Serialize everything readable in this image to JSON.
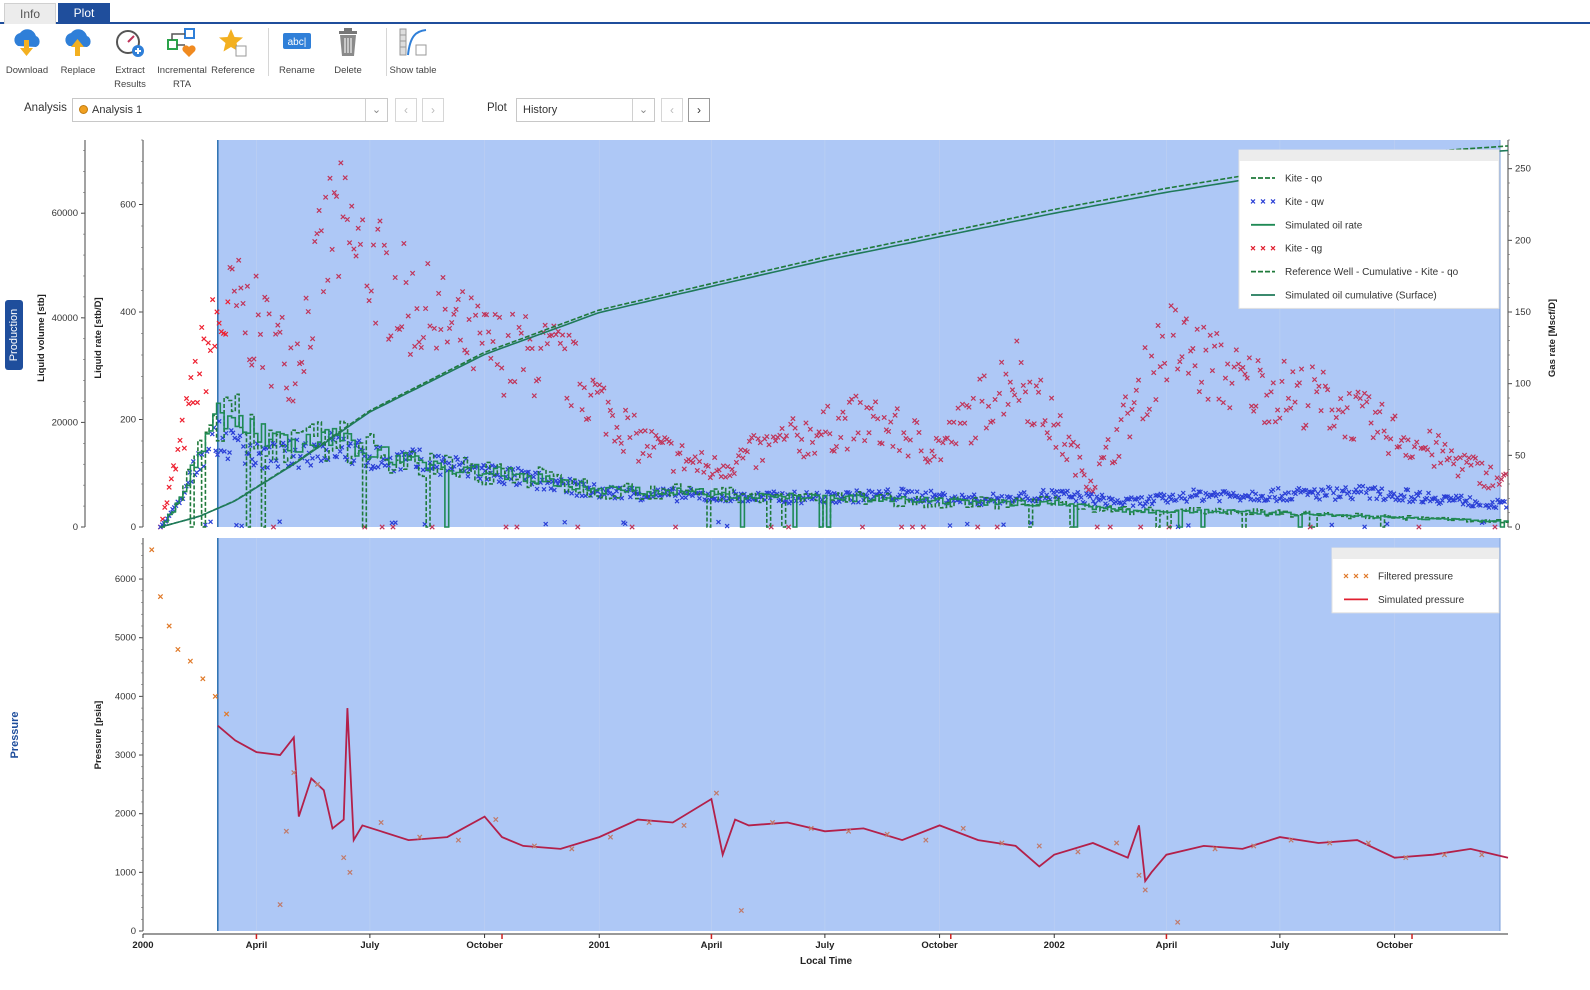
{
  "tabs": [
    {
      "label": "Info",
      "active": false
    },
    {
      "label": "Plot",
      "active": true
    }
  ],
  "toolbar": {
    "download": "Download",
    "replace": "Replace",
    "extract_1": "Extract",
    "extract_2": "Results",
    "incremental_1": "Incremental",
    "incremental_2": "RTA",
    "reference": "Reference",
    "rename": "Rename",
    "delete": "Delete",
    "show_table": "Show table",
    "rename_icon_text": "abc|"
  },
  "selectors": {
    "analysis_label": "Analysis",
    "analysis_value": "Analysis 1",
    "plot_label": "Plot",
    "plot_value": "History"
  },
  "side_labels": {
    "production": "Production",
    "pressure": "Pressure"
  },
  "colors": {
    "plot_bg": "#aec8f6",
    "kite_qo": "#1f7a3a",
    "kite_qw": "#2a3fd6",
    "kite_qg": "#c0355a",
    "sim_pressure": "#b3204a",
    "filtered_pressure": "#e07a2a"
  },
  "chart_data": [
    {
      "type": "line",
      "name": "production",
      "ylabel": "Liquid rate [stb/D]",
      "ylabel_left": "Liquid volume [stb]",
      "ylabel_right": "Gas rate [Mscf/D]",
      "y_ticks": [
        0,
        200,
        400,
        600
      ],
      "y_ticks_left": [
        0,
        20000,
        40000,
        60000
      ],
      "y_ticks_right": [
        0,
        50,
        100,
        150,
        200,
        250
      ],
      "ylim": [
        0,
        720
      ],
      "ylim_left": [
        0,
        74000
      ],
      "ylim_right": [
        0,
        270
      ],
      "legend": [
        {
          "label": "Kite - qo",
          "style": "dash",
          "color": "#1f7a3a"
        },
        {
          "label": "Kite - qw",
          "style": "cross",
          "color": "#2a3fd6"
        },
        {
          "label": "Simulated oil rate",
          "style": "solid",
          "color": "#1f8a55"
        },
        {
          "label": "Kite - qg",
          "style": "cross",
          "color": "#e02030"
        },
        {
          "label": "Reference Well - Cumulative - Kite - qo",
          "style": "dash",
          "color": "#1f7a3a"
        },
        {
          "label": "Simulated oil cumulative (Surface)",
          "style": "solid",
          "color": "#1f7a5a"
        }
      ],
      "series": [
        {
          "name": "Simulated oil cumulative (Surface)",
          "axis": "left",
          "x": [
            "2000-01-15",
            "2000-02-15",
            "2000-03-15",
            "2000-05-01",
            "2000-07-01",
            "2000-10-01",
            "2001-01-01",
            "2001-04-01",
            "2001-07-01",
            "2001-10-01",
            "2002-01-01",
            "2002-04-01",
            "2002-07-01",
            "2002-10-01",
            "2002-12-31"
          ],
          "values": [
            0,
            2000,
            5000,
            12000,
            22000,
            33000,
            41000,
            46000,
            51000,
            55500,
            60000,
            64000,
            67500,
            70500,
            72000
          ]
        },
        {
          "name": "Kite - qo",
          "axis": "rate",
          "x": [
            "2000-01-15",
            "2000-02-01",
            "2000-02-15",
            "2000-03-01",
            "2000-03-15",
            "2000-04-01",
            "2000-05-01",
            "2000-06-01",
            "2000-07-01",
            "2000-09-01",
            "2000-11-01",
            "2001-01-01",
            "2001-03-01",
            "2001-05-01",
            "2001-07-01",
            "2001-09-01",
            "2001-11-01",
            "2002-01-01",
            "2002-03-01",
            "2002-05-01",
            "2002-07-01",
            "2002-09-01",
            "2002-11-01",
            "2002-12-31"
          ],
          "values": [
            0,
            60,
            150,
            210,
            200,
            175,
            150,
            165,
            140,
            110,
            95,
            70,
            65,
            60,
            55,
            50,
            45,
            45,
            30,
            30,
            25,
            20,
            15,
            10
          ]
        },
        {
          "name": "Kite - qw",
          "axis": "rate",
          "x": [
            "2000-01-15",
            "2000-02-01",
            "2000-02-15",
            "2000-03-01",
            "2000-03-15",
            "2000-04-01",
            "2000-05-01",
            "2000-06-01",
            "2000-07-01",
            "2000-09-01",
            "2000-11-01",
            "2001-01-01",
            "2001-03-01",
            "2001-05-01",
            "2001-07-01",
            "2001-09-01",
            "2001-11-01",
            "2002-01-01",
            "2002-03-01",
            "2002-05-01",
            "2002-07-01",
            "2002-09-01",
            "2002-11-01",
            "2002-12-31"
          ],
          "values": [
            0,
            50,
            130,
            165,
            150,
            130,
            135,
            150,
            130,
            115,
            90,
            65,
            60,
            55,
            55,
            60,
            50,
            60,
            45,
            60,
            60,
            65,
            55,
            40
          ]
        },
        {
          "name": "Kite - qg",
          "axis": "right",
          "x": [
            "2000-01-15",
            "2000-02-01",
            "2000-02-15",
            "2000-03-01",
            "2000-03-15",
            "2000-04-01",
            "2000-05-01",
            "2000-06-01",
            "2000-07-01",
            "2000-08-01",
            "2000-10-01",
            "2000-12-01",
            "2001-02-01",
            "2001-04-01",
            "2001-06-01",
            "2001-08-01",
            "2001-10-01",
            "2001-12-01",
            "2002-02-01",
            "2002-04-01",
            "2002-06-01",
            "2002-08-01",
            "2002-10-01",
            "2002-12-31"
          ],
          "values": [
            0,
            60,
            110,
            140,
            155,
            140,
            115,
            210,
            185,
            155,
            125,
            115,
            60,
            40,
            60,
            75,
            55,
            110,
            30,
            130,
            100,
            90,
            65,
            30
          ]
        }
      ]
    },
    {
      "type": "line",
      "name": "pressure",
      "ylabel": "Pressure [psia]",
      "xlabel": "Local Time",
      "y_ticks": [
        0,
        1000,
        2000,
        3000,
        4000,
        5000,
        6000
      ],
      "ylim": [
        0,
        6700
      ],
      "x_tick_labels": [
        {
          "label": "2000",
          "date": "2000-01-01",
          "bold": true
        },
        {
          "label": "April",
          "date": "2000-04-01",
          "bold": false
        },
        {
          "label": "July",
          "date": "2000-07-01",
          "bold": false
        },
        {
          "label": "October",
          "date": "2000-10-01",
          "bold": false
        },
        {
          "label": "2001",
          "date": "2001-01-01",
          "bold": true
        },
        {
          "label": "April",
          "date": "2001-04-01",
          "bold": false
        },
        {
          "label": "July",
          "date": "2001-07-01",
          "bold": false
        },
        {
          "label": "October",
          "date": "2001-10-01",
          "bold": false
        },
        {
          "label": "2002",
          "date": "2002-01-01",
          "bold": true
        },
        {
          "label": "April",
          "date": "2002-04-01",
          "bold": false
        },
        {
          "label": "July",
          "date": "2002-07-01",
          "bold": false
        },
        {
          "label": "October",
          "date": "2002-10-01",
          "bold": false
        }
      ],
      "xlim": [
        "2000-01-01",
        "2002-12-31"
      ],
      "highlight_start": "2000-03-01",
      "legend": [
        {
          "label": "Filtered pressure",
          "style": "cross",
          "color": "#e07a2a"
        },
        {
          "label": "Simulated pressure",
          "style": "solid",
          "color": "#e02030"
        }
      ],
      "series": [
        {
          "name": "Simulated pressure",
          "x": [
            "2000-03-01",
            "2000-03-15",
            "2000-04-01",
            "2000-04-20",
            "2000-05-01",
            "2000-05-05",
            "2000-05-15",
            "2000-05-25",
            "2000-06-01",
            "2000-06-10",
            "2000-06-13",
            "2000-06-18",
            "2000-06-25",
            "2000-07-10",
            "2000-08-01",
            "2000-09-01",
            "2000-10-01",
            "2000-10-15",
            "2000-11-01",
            "2000-12-01",
            "2001-01-01",
            "2001-02-01",
            "2001-03-01",
            "2001-04-01",
            "2001-04-10",
            "2001-04-20",
            "2001-05-01",
            "2001-06-01",
            "2001-07-01",
            "2001-08-01",
            "2001-09-01",
            "2001-10-01",
            "2001-11-01",
            "2001-12-01",
            "2001-12-20",
            "2002-01-01",
            "2002-02-01",
            "2002-03-01",
            "2002-03-10",
            "2002-03-15",
            "2002-03-20",
            "2002-04-01",
            "2002-05-01",
            "2002-06-01",
            "2002-07-01",
            "2002-08-01",
            "2002-09-01",
            "2002-10-01",
            "2002-11-01",
            "2002-12-01",
            "2002-12-31"
          ],
          "values": [
            3500,
            3250,
            3050,
            3000,
            3300,
            1950,
            2600,
            2400,
            1750,
            1900,
            3800,
            1550,
            1800,
            1700,
            1550,
            1600,
            1950,
            1600,
            1450,
            1400,
            1600,
            1900,
            1850,
            2250,
            1300,
            1900,
            1800,
            1850,
            1700,
            1750,
            1550,
            1800,
            1550,
            1450,
            1100,
            1300,
            1500,
            1250,
            1800,
            850,
            1000,
            1300,
            1450,
            1400,
            1600,
            1500,
            1550,
            1250,
            1300,
            1400,
            1250
          ]
        },
        {
          "name": "Filtered pressure",
          "x": [
            "2000-01-08",
            "2000-01-15",
            "2000-01-22",
            "2000-01-29",
            "2000-02-08",
            "2000-02-18",
            "2000-02-28",
            "2000-03-08",
            "2000-04-20",
            "2000-04-25",
            "2000-05-01",
            "2000-05-20",
            "2000-06-10",
            "2000-06-15",
            "2000-07-10",
            "2000-08-10",
            "2000-09-10",
            "2000-10-10",
            "2000-11-10",
            "2000-12-10",
            "2001-01-10",
            "2001-02-10",
            "2001-03-10",
            "2001-04-05",
            "2001-04-25",
            "2001-05-20",
            "2001-06-20",
            "2001-07-20",
            "2001-08-20",
            "2001-09-20",
            "2001-10-20",
            "2001-11-20",
            "2001-12-20",
            "2002-01-20",
            "2002-02-20",
            "2002-03-10",
            "2002-03-15",
            "2002-04-10",
            "2002-05-10",
            "2002-06-10",
            "2002-07-10",
            "2002-08-10",
            "2002-09-10",
            "2002-10-10",
            "2002-11-10",
            "2002-12-10"
          ],
          "values": [
            6500,
            5700,
            5200,
            4800,
            4600,
            4300,
            4000,
            3700,
            450,
            1700,
            2700,
            2500,
            1250,
            1000,
            1850,
            1600,
            1550,
            1900,
            1450,
            1400,
            1600,
            1850,
            1800,
            2350,
            350,
            1850,
            1750,
            1700,
            1650,
            1550,
            1750,
            1500,
            1450,
            1350,
            1500,
            950,
            700,
            150,
            1400,
            1450,
            1550,
            1500,
            1500,
            1250,
            1300,
            1300
          ]
        }
      ]
    }
  ]
}
